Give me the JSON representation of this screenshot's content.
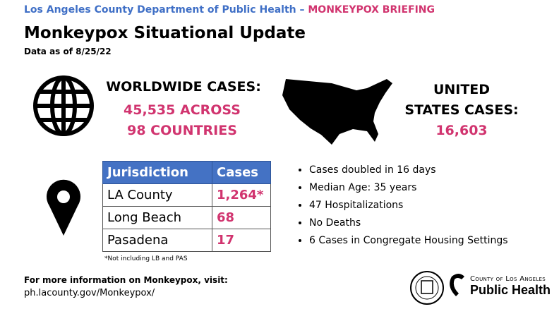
{
  "header": {
    "org": "Los Angeles County Department of Public Health",
    "separator": "–",
    "briefing": "MONKEYPOX BRIEFING"
  },
  "title": "Monkeypox Situational Update",
  "subtitle": "Data as of 8/25/22",
  "worldwide": {
    "label": "WORLDWIDE CASES:",
    "lines": [
      "45,535 ACROSS",
      "98 COUNTRIES"
    ]
  },
  "united_states": {
    "label_lines": [
      "UNITED",
      "STATES CASES:"
    ],
    "value": "16,603"
  },
  "table": {
    "headers": [
      "Jurisdiction",
      "Cases"
    ],
    "rows": [
      [
        "LA County",
        "1,264*"
      ],
      [
        "Long Beach",
        "68"
      ],
      [
        "Pasadena",
        "17"
      ]
    ]
  },
  "footnote": "*Not including LB and PAS",
  "bullets": [
    "Cases doubled in 16 days",
    "Median Age: 35 years",
    "47 Hospitalizations",
    "No Deaths",
    "6 Cases in Congregate Housing Settings"
  ],
  "footer": {
    "line1": "For more information on Monkeypox, visit:",
    "line2": "ph.lacounty.gov/Monkeypox/"
  },
  "logo": {
    "line1": "County of Los Angeles",
    "line2": "Public Health"
  }
}
